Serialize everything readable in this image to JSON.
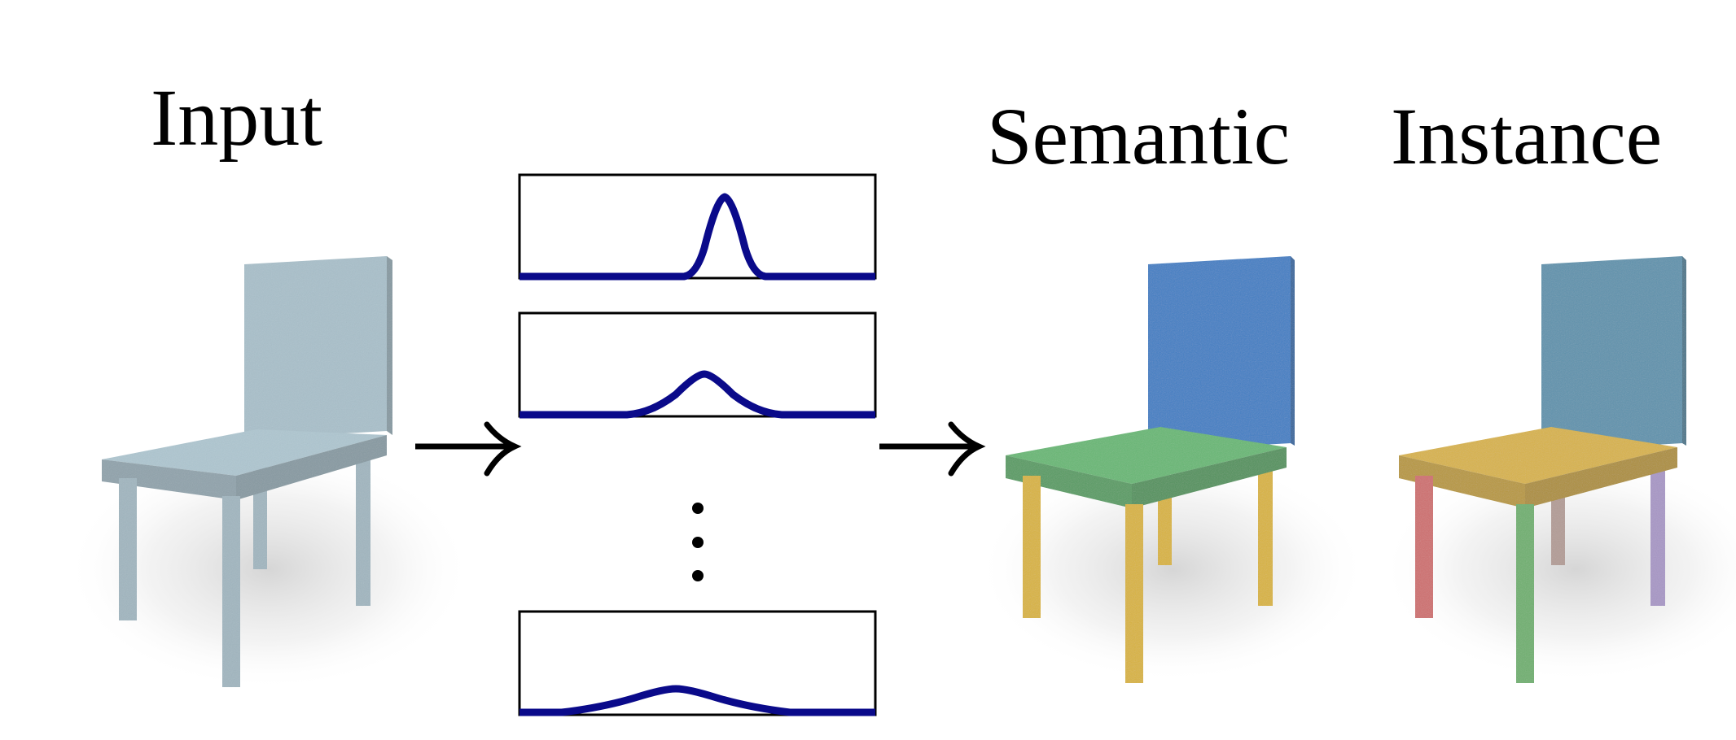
{
  "labels": {
    "input": "Input",
    "semantic": "Semantic",
    "instance": "Instance"
  },
  "colors": {
    "input_chair": "#a9c0ca",
    "semantic_back": "#3f7fc4",
    "semantic_seat": "#67b874",
    "semantic_legs": "#d9b43e",
    "instance_back": "#5f93ad",
    "instance_seat": "#d8b349",
    "instance_leg_front_left": "#cf6f6f",
    "instance_leg_front_right": "#6fb06f",
    "instance_leg_back_right": "#a897c6",
    "instance_leg_back_left": "#b39c96",
    "curve": "#0a0a8a",
    "frame": "#000000",
    "arrow": "#000000"
  },
  "distributions": [
    {
      "shape": "narrow-peak"
    },
    {
      "shape": "medium-bump"
    },
    {
      "shape": "ellipsis"
    },
    {
      "shape": "wide-bump"
    }
  ]
}
